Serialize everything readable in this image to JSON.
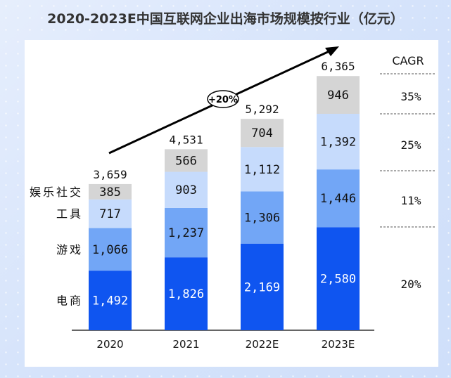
{
  "chart_data": {
    "type": "bar",
    "stacked": true,
    "title": "2020-2023E中国互联网企业出海市场规模按行业（亿元）",
    "categories": [
      "2020",
      "2021",
      "2022E",
      "2023E"
    ],
    "series": [
      {
        "name": "电商",
        "values": [
          1492,
          1826,
          2169,
          2580
        ],
        "labels": [
          "1,492",
          "1,826",
          "2,169",
          "2,580"
        ],
        "color": "#0f55f0",
        "text_color": "#ffffff"
      },
      {
        "name": "游戏",
        "values": [
          1066,
          1237,
          1306,
          1446
        ],
        "labels": [
          "1,066",
          "1,237",
          "1,306",
          "1,446"
        ],
        "color": "#72a6f6",
        "text_color": "#111111"
      },
      {
        "name": "工具",
        "values": [
          717,
          903,
          1112,
          1392
        ],
        "labels": [
          "717",
          "903",
          "1,112",
          "1,392"
        ],
        "color": "#c6dbfc",
        "text_color": "#111111"
      },
      {
        "name": "娱乐社交",
        "values": [
          385,
          566,
          704,
          946
        ],
        "labels": [
          "385",
          "566",
          "704",
          "946"
        ],
        "color": "#d5d5d5",
        "text_color": "#111111"
      }
    ],
    "totals": [
      3659,
      4531,
      5292,
      6365
    ],
    "total_labels": [
      "3,659",
      "4,531",
      "5,292",
      "6,365"
    ],
    "growth_annotation": "+20%",
    "cagr": {
      "header": "CAGR",
      "values": [
        "35%",
        "25%",
        "11%",
        "20%"
      ]
    },
    "ylim": [
      0,
      6500
    ],
    "grid": false,
    "legend": "left of first bar"
  }
}
